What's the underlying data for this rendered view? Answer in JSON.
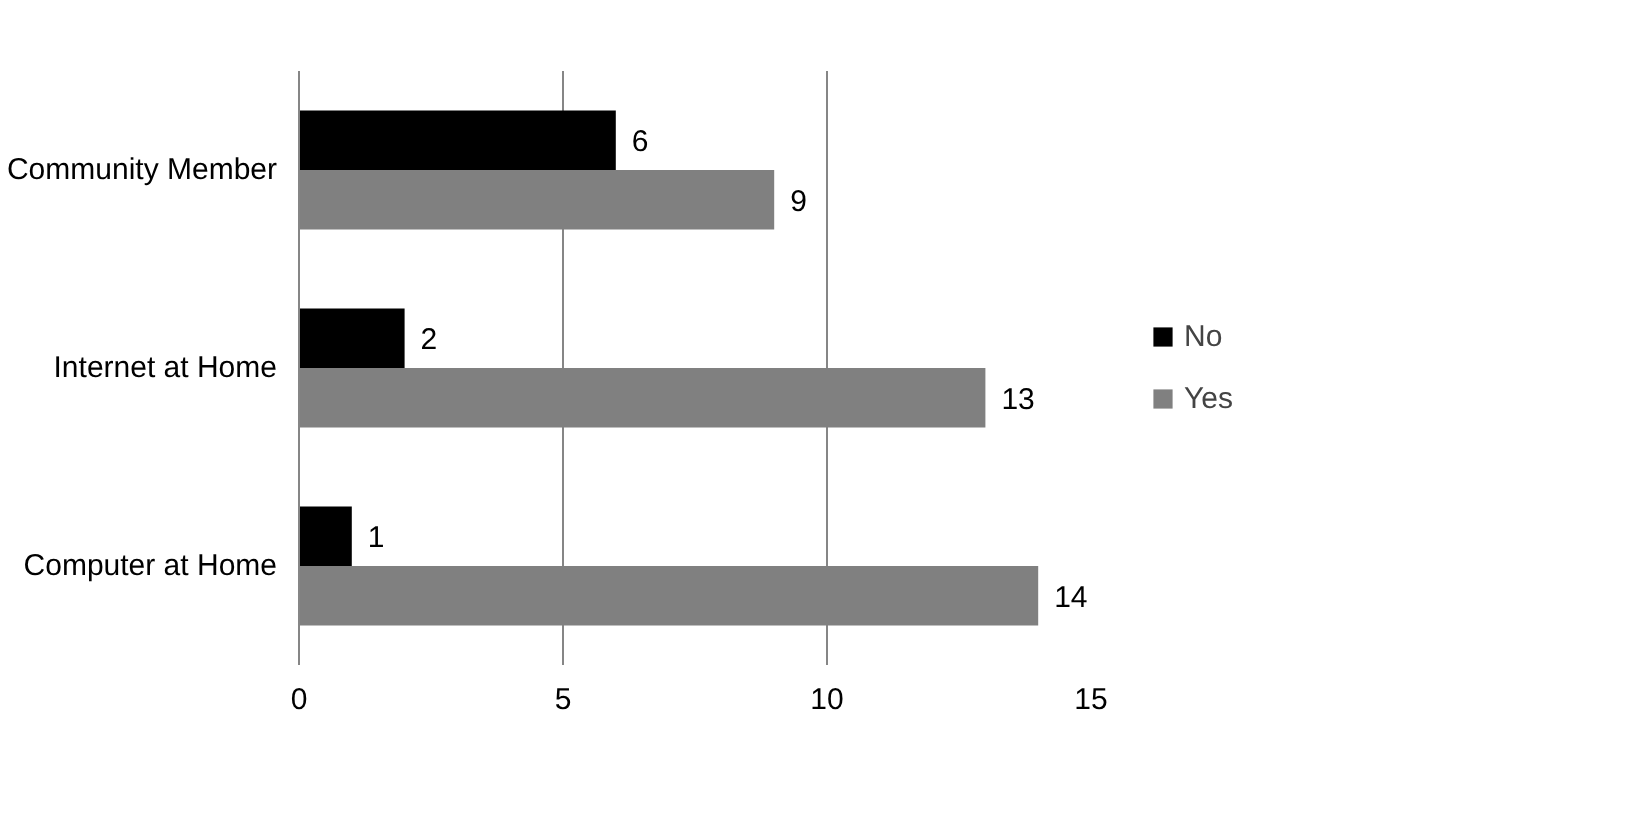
{
  "chart_data": {
    "type": "bar",
    "orientation": "horizontal",
    "categories": [
      "Community Member",
      "Internet at Home",
      "Computer at Home"
    ],
    "series": [
      {
        "name": "No",
        "color": "#000000",
        "values": [
          6,
          2,
          1
        ]
      },
      {
        "name": "Yes",
        "color": "#808080",
        "values": [
          9,
          13,
          14
        ]
      }
    ],
    "xlim": [
      0,
      15
    ],
    "xticks": [
      0,
      5,
      10,
      15
    ],
    "grid": "x",
    "legend": "right",
    "data_labels": true
  }
}
